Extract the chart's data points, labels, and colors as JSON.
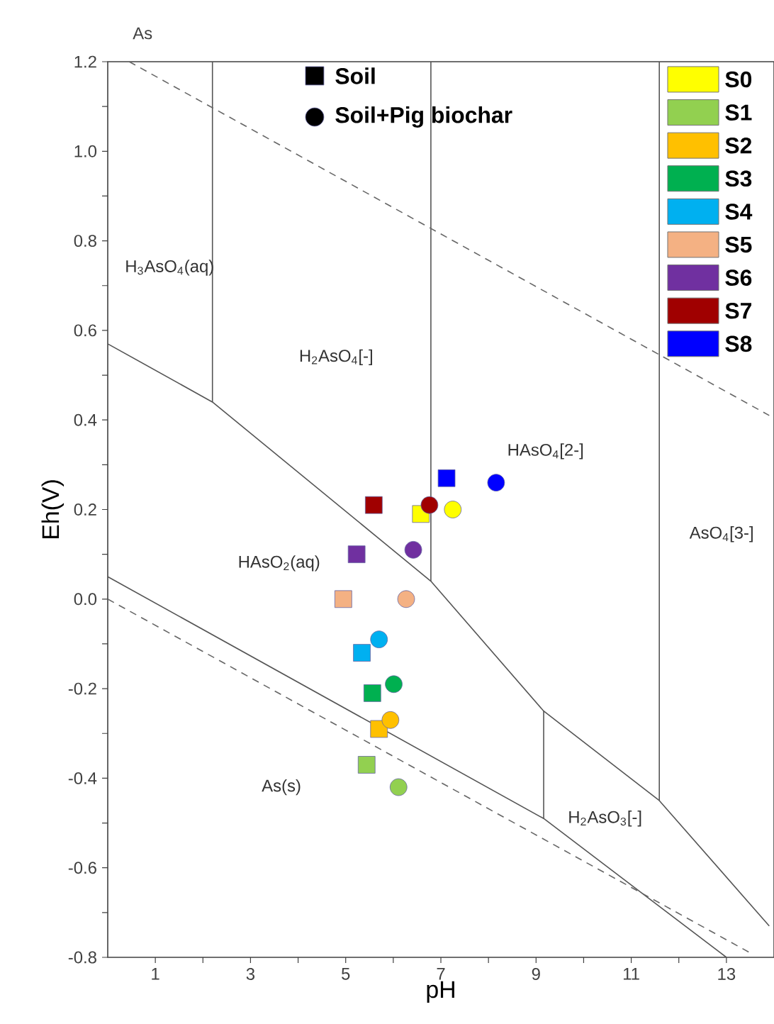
{
  "chart_data": {
    "type": "scatter",
    "title": "As",
    "xlabel": "pH",
    "ylabel": "Eh(V)",
    "xlim": [
      0,
      14
    ],
    "ylim": [
      -0.8,
      1.2
    ],
    "xticks": [
      1,
      {
        "value": 2,
        "label": null
      },
      3,
      {
        "value": 4,
        "label": null
      },
      5,
      {
        "value": 6,
        "label": null
      },
      7,
      {
        "value": 8,
        "label": null
      },
      9,
      {
        "value": 10,
        "label": null
      },
      11,
      {
        "value": 12,
        "label": null
      },
      13
    ],
    "yticks": [
      {
        "value": -0.8,
        "label": "-0.8"
      },
      {
        "value": -0.7,
        "label": null
      },
      {
        "value": -0.6,
        "label": "-0.6"
      },
      {
        "value": -0.5,
        "label": null
      },
      {
        "value": -0.4,
        "label": "-0.4"
      },
      {
        "value": -0.3,
        "label": null
      },
      {
        "value": -0.2,
        "label": "-0.2"
      },
      {
        "value": -0.1,
        "label": null
      },
      {
        "value": 0,
        "label": "0.0"
      },
      {
        "value": 0.1,
        "label": null
      },
      {
        "value": 0.2,
        "label": "0.2"
      },
      {
        "value": 0.3,
        "label": null
      },
      {
        "value": 0.4,
        "label": "0.4"
      },
      {
        "value": 0.5,
        "label": null
      },
      {
        "value": 0.6,
        "label": "0.6"
      },
      {
        "value": 0.7,
        "label": null
      },
      {
        "value": 0.8,
        "label": "0.8"
      },
      {
        "value": 0.9,
        "label": null
      },
      {
        "value": 1.0,
        "label": "1.0"
      },
      {
        "value": 1.1,
        "label": null
      },
      {
        "value": 1.2,
        "label": "1.2"
      }
    ],
    "legend": "top right",
    "series": [
      {
        "name": "Soil",
        "marker": "square",
        "color": "#000000"
      },
      {
        "name": "Soil+Pig biochar",
        "marker": "circle",
        "color": "#000000"
      },
      {
        "name": "S0",
        "marker": "square",
        "color": "#ffff00",
        "x": [
          6.58
        ],
        "values": [
          0.19
        ]
      },
      {
        "name": "S1",
        "marker": "square",
        "color": "#92d050",
        "x": [
          5.44
        ],
        "values": [
          -0.37
        ]
      },
      {
        "name": "S2",
        "marker": "square",
        "color": "#ffc000",
        "x": [
          5.7
        ],
        "values": [
          -0.29
        ]
      },
      {
        "name": "S3",
        "marker": "square",
        "color": "#00b050",
        "x": [
          5.56
        ],
        "values": [
          -0.21
        ]
      },
      {
        "name": "S4",
        "marker": "square",
        "color": "#00b0f0",
        "x": [
          5.34
        ],
        "values": [
          -0.12
        ]
      },
      {
        "name": "S5",
        "marker": "square",
        "color": "#f4b183",
        "x": [
          4.95
        ],
        "values": [
          0.0
        ]
      },
      {
        "name": "S6",
        "marker": "square",
        "color": "#7030a0",
        "x": [
          5.23
        ],
        "values": [
          0.1
        ]
      },
      {
        "name": "S7",
        "marker": "square",
        "color": "#a00000",
        "x": [
          5.59
        ],
        "values": [
          0.21
        ]
      },
      {
        "name": "S8",
        "marker": "square",
        "color": "#0000ff",
        "x": [
          7.12
        ],
        "values": [
          0.27
        ]
      },
      {
        "marker": "circle",
        "color": "#ffff00",
        "x": [
          7.25
        ],
        "values": [
          0.2
        ]
      },
      {
        "marker": "circle",
        "color": "#92d050",
        "x": [
          6.11
        ],
        "values": [
          -0.42
        ]
      },
      {
        "marker": "circle",
        "color": "#ffc000",
        "x": [
          5.94
        ],
        "values": [
          -0.27
        ]
      },
      {
        "marker": "circle",
        "color": "#00b050",
        "x": [
          6.01
        ],
        "values": [
          -0.19
        ]
      },
      {
        "marker": "circle",
        "color": "#00b0f0",
        "x": [
          5.7
        ],
        "values": [
          -0.09
        ]
      },
      {
        "marker": "circle",
        "color": "#f4b183",
        "x": [
          6.27
        ],
        "values": [
          0.0
        ]
      },
      {
        "marker": "circle",
        "color": "#7030a0",
        "x": [
          6.42
        ],
        "values": [
          0.11
        ]
      },
      {
        "marker": "circle",
        "color": "#a00000",
        "x": [
          6.76
        ],
        "values": [
          0.21
        ]
      },
      {
        "marker": "circle",
        "color": "#0000ff",
        "x": [
          8.16
        ],
        "values": [
          0.26
        ]
      },
      {
        "type": "line",
        "color": "#555555",
        "line_style": "solid",
        "x": [
          0,
          2.2,
          6.79,
          9.16,
          11.59,
          13.9
        ],
        "values": [
          0.57,
          0.44,
          0.04,
          -0.25,
          -0.45,
          -0.73
        ]
      },
      {
        "type": "line",
        "color": "#555555",
        "line_style": "solid",
        "x": [
          0,
          9.16,
          13.0
        ],
        "values": [
          0.05,
          -0.49,
          -0.8
        ]
      },
      {
        "type": "line",
        "color": "#555555",
        "line_style": "solid",
        "x": [
          2.2,
          2.2
        ],
        "values": [
          0.44,
          1.2
        ]
      },
      {
        "type": "line",
        "color": "#555555",
        "line_style": "solid",
        "x": [
          6.79,
          6.79
        ],
        "values": [
          0.04,
          1.2
        ]
      },
      {
        "type": "line",
        "color": "#555555",
        "line_style": "solid",
        "x": [
          11.59,
          11.59
        ],
        "values": [
          -0.45,
          1.2
        ]
      },
      {
        "type": "line",
        "color": "#555555",
        "line_style": "solid",
        "x": [
          9.16,
          9.16
        ],
        "values": [
          -0.49,
          -0.25
        ]
      },
      {
        "type": "line",
        "color": "#666666",
        "line_style": "dashed",
        "x": [
          0.45,
          13.9
        ],
        "values": [
          1.2,
          0.41
        ]
      },
      {
        "type": "line",
        "color": "#666666",
        "line_style": "dashed",
        "x": [
          0,
          13.5
        ],
        "values": [
          0.0,
          -0.79
        ]
      }
    ],
    "annotations": [
      "H$_{3}$AsO$_{4}$(aq)",
      "H$_{2}$AsO$_{4}$[-]",
      "HAsO$_{4}$[2-]",
      "HAsO$_{2}$(aq)",
      "AsO$_{4}$[3-]",
      "As(s)",
      "H$_{2}$AsO$_{3}$[-]"
    ]
  }
}
